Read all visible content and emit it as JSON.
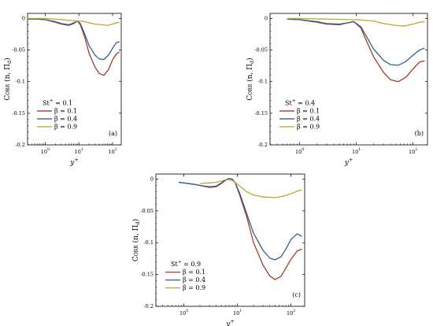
{
  "chart_data": [
    {
      "type": "line",
      "x_scale": "log",
      "xlim": [
        0.3,
        180
      ],
      "ylim": [
        -0.2,
        0.008
      ],
      "xlabel": "y+",
      "ylabel": "Corr (n, Π_d)",
      "x_ticks": [
        "10^0",
        "10^1",
        "10^2"
      ],
      "y_ticks": [
        "0",
        "-0.05",
        "-0.1",
        "-0.15",
        "-0.2"
      ],
      "grid": false,
      "panel_label": "(a)",
      "legend_title": "St+ = 0.1",
      "legend_position": "bottom-left",
      "series": [
        {
          "name": "β = 0.1",
          "color": "#a13d2b",
          "points": [
            [
              0.3,
              -0.001
            ],
            [
              0.6,
              -0.001
            ],
            [
              1,
              -0.002
            ],
            [
              2,
              -0.006
            ],
            [
              3,
              -0.009
            ],
            [
              5,
              -0.011
            ],
            [
              7,
              -0.008
            ],
            [
              9,
              -0.004
            ],
            [
              11,
              -0.01
            ],
            [
              15,
              -0.03
            ],
            [
              20,
              -0.055
            ],
            [
              30,
              -0.077
            ],
            [
              40,
              -0.087
            ],
            [
              55,
              -0.09
            ],
            [
              75,
              -0.081
            ],
            [
              100,
              -0.065
            ],
            [
              130,
              -0.056
            ],
            [
              160,
              -0.053
            ]
          ]
        },
        {
          "name": "β = 0.4",
          "color": "#33608e",
          "points": [
            [
              0.3,
              -0.001
            ],
            [
              0.6,
              -0.001
            ],
            [
              1,
              -0.002
            ],
            [
              2,
              -0.005
            ],
            [
              3,
              -0.008
            ],
            [
              5,
              -0.01
            ],
            [
              7,
              -0.007
            ],
            [
              9,
              -0.004
            ],
            [
              11,
              -0.008
            ],
            [
              15,
              -0.025
            ],
            [
              20,
              -0.043
            ],
            [
              30,
              -0.058
            ],
            [
              40,
              -0.064
            ],
            [
              55,
              -0.065
            ],
            [
              75,
              -0.058
            ],
            [
              100,
              -0.047
            ],
            [
              130,
              -0.038
            ],
            [
              160,
              -0.037
            ]
          ]
        },
        {
          "name": "β = 0.9",
          "color": "#bcaa2c",
          "points": [
            [
              0.3,
              0
            ],
            [
              1,
              0
            ],
            [
              2,
              -0.001
            ],
            [
              5,
              -0.003
            ],
            [
              10,
              -0.004
            ],
            [
              15,
              -0.005
            ],
            [
              20,
              -0.007
            ],
            [
              30,
              -0.009
            ],
            [
              50,
              -0.01
            ],
            [
              70,
              -0.011
            ],
            [
              100,
              -0.009
            ],
            [
              130,
              -0.007
            ],
            [
              160,
              -0.006
            ]
          ]
        }
      ]
    },
    {
      "type": "line",
      "x_scale": "log",
      "xlim": [
        0.3,
        180
      ],
      "ylim": [
        -0.2,
        0.008
      ],
      "xlabel": "y+",
      "ylabel": "Corr (n, Π_d)",
      "x_ticks": [
        "10^0",
        "10^1",
        "10^2"
      ],
      "y_ticks": [
        "0",
        "-0.05",
        "-0.1",
        "-0.15",
        "-0.2"
      ],
      "grid": false,
      "panel_label": "(b)",
      "legend_title": "St+ = 0.4",
      "legend_position": "bottom-left",
      "series": [
        {
          "name": "β = 0.1",
          "color": "#a13d2b",
          "points": [
            [
              0.6,
              -0.001
            ],
            [
              1,
              -0.002
            ],
            [
              2,
              -0.006
            ],
            [
              3,
              -0.009
            ],
            [
              5,
              -0.01
            ],
            [
              7,
              -0.007
            ],
            [
              9,
              -0.005
            ],
            [
              12,
              -0.015
            ],
            [
              15,
              -0.035
            ],
            [
              20,
              -0.06
            ],
            [
              30,
              -0.085
            ],
            [
              40,
              -0.097
            ],
            [
              55,
              -0.1
            ],
            [
              75,
              -0.093
            ],
            [
              100,
              -0.08
            ],
            [
              130,
              -0.069
            ],
            [
              160,
              -0.067
            ]
          ]
        },
        {
          "name": "β = 0.4",
          "color": "#33608e",
          "points": [
            [
              0.6,
              -0.001
            ],
            [
              1,
              -0.002
            ],
            [
              2,
              -0.005
            ],
            [
              3,
              -0.008
            ],
            [
              5,
              -0.009
            ],
            [
              7,
              -0.007
            ],
            [
              9,
              -0.005
            ],
            [
              12,
              -0.013
            ],
            [
              15,
              -0.028
            ],
            [
              20,
              -0.048
            ],
            [
              30,
              -0.066
            ],
            [
              40,
              -0.073
            ],
            [
              55,
              -0.074
            ],
            [
              75,
              -0.068
            ],
            [
              100,
              -0.058
            ],
            [
              130,
              -0.05
            ],
            [
              160,
              -0.047
            ]
          ]
        },
        {
          "name": "β = 0.9",
          "color": "#bcaa2c",
          "points": [
            [
              0.6,
              0
            ],
            [
              1,
              0
            ],
            [
              3,
              -0.001
            ],
            [
              10,
              -0.002
            ],
            [
              20,
              -0.004
            ],
            [
              30,
              -0.008
            ],
            [
              50,
              -0.011
            ],
            [
              70,
              -0.012
            ],
            [
              100,
              -0.009
            ],
            [
              130,
              -0.006
            ],
            [
              160,
              -0.005
            ]
          ]
        }
      ]
    },
    {
      "type": "line",
      "x_scale": "log",
      "xlim": [
        0.3,
        180
      ],
      "ylim": [
        -0.2,
        0.008
      ],
      "xlabel": "y+",
      "ylabel": "Corr (n, Π_d)",
      "x_ticks": [
        "10^0",
        "10^1",
        "10^2"
      ],
      "y_ticks": [
        "0",
        "-0.05",
        "-0.1",
        "-0.15",
        "-0.2"
      ],
      "grid": false,
      "panel_label": "(c)",
      "legend_title": "St+ = 0.9",
      "legend_position": "bottom-left",
      "series": [
        {
          "name": "β = 0.1",
          "color": "#a13d2b",
          "points": [
            [
              0.8,
              -0.005
            ],
            [
              1.5,
              -0.008
            ],
            [
              2,
              -0.01
            ],
            [
              3,
              -0.013
            ],
            [
              4,
              -0.012
            ],
            [
              5,
              -0.007
            ],
            [
              6,
              -0.002
            ],
            [
              7,
              0.001
            ],
            [
              8,
              0
            ],
            [
              9,
              -0.005
            ],
            [
              11,
              -0.025
            ],
            [
              15,
              -0.06
            ],
            [
              20,
              -0.1
            ],
            [
              30,
              -0.135
            ],
            [
              40,
              -0.152
            ],
            [
              50,
              -0.158
            ],
            [
              65,
              -0.153
            ],
            [
              80,
              -0.14
            ],
            [
              100,
              -0.126
            ],
            [
              130,
              -0.113
            ],
            [
              160,
              -0.11
            ]
          ]
        },
        {
          "name": "β = 0.4",
          "color": "#33608e",
          "points": [
            [
              0.8,
              -0.005
            ],
            [
              1.5,
              -0.008
            ],
            [
              2,
              -0.01
            ],
            [
              3,
              -0.012
            ],
            [
              4,
              -0.011
            ],
            [
              5,
              -0.006
            ],
            [
              6,
              -0.001
            ],
            [
              7,
              0.001
            ],
            [
              8,
              0
            ],
            [
              9,
              -0.005
            ],
            [
              11,
              -0.022
            ],
            [
              15,
              -0.055
            ],
            [
              20,
              -0.085
            ],
            [
              30,
              -0.112
            ],
            [
              40,
              -0.124
            ],
            [
              50,
              -0.127
            ],
            [
              65,
              -0.122
            ],
            [
              80,
              -0.11
            ],
            [
              100,
              -0.095
            ],
            [
              130,
              -0.086
            ],
            [
              160,
              -0.09
            ]
          ]
        },
        {
          "name": "β = 0.9",
          "color": "#bcaa2c",
          "points": [
            [
              2,
              -0.007
            ],
            [
              3,
              -0.006
            ],
            [
              4,
              -0.005
            ],
            [
              5,
              -0.003
            ],
            [
              6,
              -0.001
            ],
            [
              7,
              -0.001
            ],
            [
              8,
              -0.002
            ],
            [
              10,
              -0.008
            ],
            [
              15,
              -0.02
            ],
            [
              20,
              -0.025
            ],
            [
              30,
              -0.028
            ],
            [
              50,
              -0.029
            ],
            [
              70,
              -0.027
            ],
            [
              100,
              -0.023
            ],
            [
              130,
              -0.019
            ],
            [
              160,
              -0.017
            ]
          ]
        }
      ]
    }
  ]
}
